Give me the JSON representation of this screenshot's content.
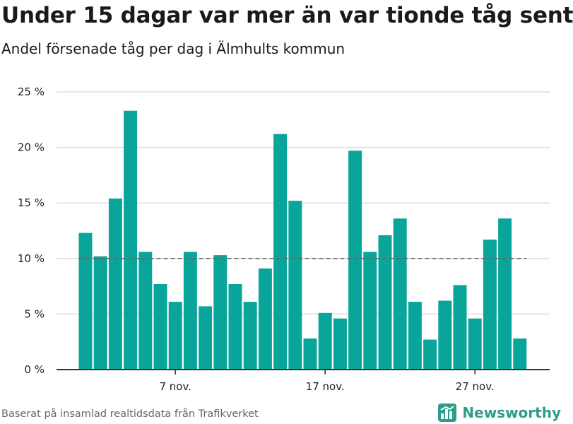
{
  "title": "Under 15 dagar var mer än var tionde tåg sent",
  "subtitle": "Andel försenade tåg per dag i Älmhults kommun",
  "footer": "Baserat på insamlad realtidsdata från Trafikverket",
  "brand": {
    "name": "Newsworthy",
    "icon": "newsworthy-logo-icon"
  },
  "colors": {
    "bar": "#0aa59a",
    "grid": "#dddddd",
    "axis": "#333333",
    "reference_line": "#666666",
    "brand": "#2e9c8b"
  },
  "chart_data": {
    "type": "bar",
    "x": [
      "2019-11-01",
      "2019-11-02",
      "2019-11-03",
      "2019-11-04",
      "2019-11-05",
      "2019-11-06",
      "2019-11-07",
      "2019-11-08",
      "2019-11-09",
      "2019-11-10",
      "2019-11-11",
      "2019-11-12",
      "2019-11-13",
      "2019-11-14",
      "2019-11-15",
      "2019-11-16",
      "2019-11-17",
      "2019-11-18",
      "2019-11-19",
      "2019-11-20",
      "2019-11-21",
      "2019-11-22",
      "2019-11-23",
      "2019-11-24",
      "2019-11-25",
      "2019-11-26",
      "2019-11-27",
      "2019-11-28",
      "2019-11-29",
      "2019-11-30"
    ],
    "values": [
      12.3,
      10.2,
      15.4,
      23.3,
      10.6,
      7.7,
      6.1,
      10.6,
      5.7,
      10.3,
      7.7,
      6.1,
      9.1,
      21.2,
      15.2,
      2.8,
      5.1,
      4.6,
      19.7,
      10.6,
      12.1,
      13.6,
      6.1,
      2.7,
      6.2,
      7.6,
      4.6,
      11.7,
      13.6,
      2.8
    ],
    "reference_line": {
      "y": 10,
      "style": "dashed"
    },
    "x_ticks": [
      {
        "x": "2019-11-07",
        "label": "7 nov."
      },
      {
        "x": "2019-11-17",
        "label": "17 nov."
      },
      {
        "x": "2019-11-27",
        "label": "27 nov."
      }
    ],
    "y_ticks": [
      {
        "value": 0,
        "label": "0 %"
      },
      {
        "value": 5,
        "label": "5 %"
      },
      {
        "value": 10,
        "label": "10 %"
      },
      {
        "value": 15,
        "label": "15 %"
      },
      {
        "value": 20,
        "label": "20 %"
      },
      {
        "value": 25,
        "label": "25 %"
      }
    ],
    "ylim": [
      0,
      25
    ],
    "grid": true,
    "legend": "none"
  }
}
